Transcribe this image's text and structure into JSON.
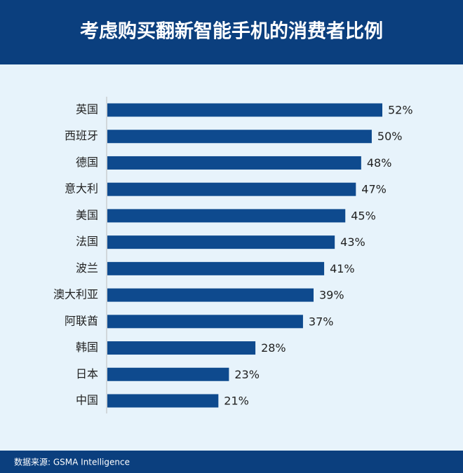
{
  "chart_data": {
    "type": "bar",
    "orientation": "horizontal",
    "title": "考虑购买翻新智能手机的消费者比例",
    "categories": [
      "英国",
      "西班牙",
      "德国",
      "意大利",
      "美国",
      "法国",
      "波兰",
      "澳大利亚",
      "阿联酋",
      "韩国",
      "日本",
      "中国"
    ],
    "values": [
      52,
      50,
      48,
      47,
      45,
      43,
      41,
      39,
      37,
      28,
      23,
      21
    ],
    "value_labels": [
      "52%",
      "50%",
      "48%",
      "47%",
      "45%",
      "43%",
      "41%",
      "39%",
      "37%",
      "28%",
      "23%",
      "21%"
    ],
    "color": "#0e4a8e",
    "source": "数据来源: GSMA Intelligence"
  }
}
